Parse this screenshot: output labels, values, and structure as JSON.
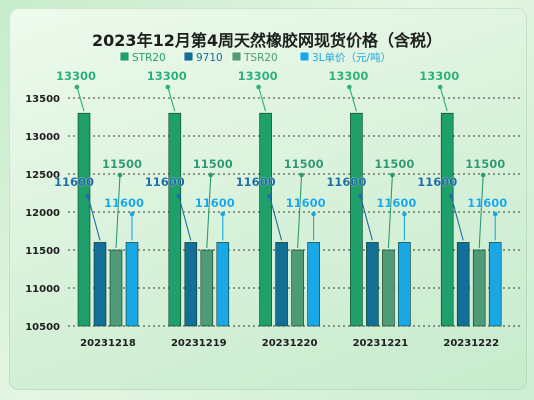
{
  "chart_data": {
    "type": "bar",
    "title": "2023年12月第4周天然橡胶网现货价格（含税）",
    "categories": [
      "20231218",
      "20231219",
      "20231220",
      "20231221",
      "20231222"
    ],
    "series": [
      {
        "name": "STR20",
        "color": "#1fa06a",
        "values": [
          13300,
          13300,
          13300,
          13300,
          13300
        ]
      },
      {
        "name": "9710",
        "color": "#146f96",
        "values": [
          11600,
          11600,
          11600,
          11600,
          11600
        ]
      },
      {
        "name": "TSR20",
        "color": "#4f9a77",
        "values": [
          11500,
          11500,
          11500,
          11500,
          11500
        ]
      },
      {
        "name": "3L单价（元/吨）",
        "color": "#1aa7e6",
        "values": [
          11600,
          11600,
          11600,
          11600,
          11600
        ]
      }
    ],
    "ylim": [
      10500,
      13500
    ],
    "yticks": [
      10500,
      11000,
      11500,
      12000,
      12500,
      13000,
      13500
    ],
    "grid": true,
    "legend_position": "top"
  },
  "colors": {
    "label_str20": "#2bb07a",
    "label_9710": "#1c6fa0",
    "label_tsr20": "#2f9a72",
    "label_3l": "#1aa7e6",
    "grid": "#3a3a3a"
  }
}
